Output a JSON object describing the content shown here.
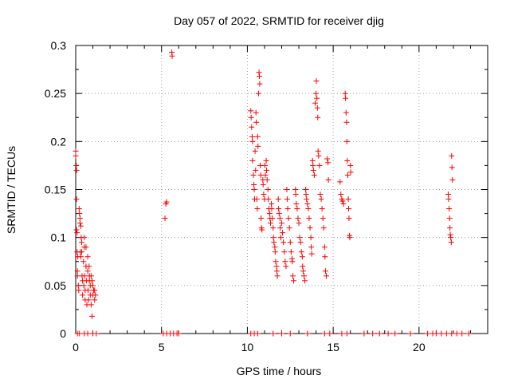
{
  "chart_data": {
    "type": "scatter",
    "title": "Day 057 of 2022, SRMTID for receiver djig",
    "xlabel": "GPS time / hours",
    "ylabel": "SRMTID / TECUs",
    "xlim": [
      0,
      24
    ],
    "ylim": [
      0,
      0.3
    ],
    "xticks": [
      "0",
      "5",
      "10",
      "15",
      "20"
    ],
    "xtick_values": [
      0,
      5,
      10,
      15,
      20
    ],
    "yticks": [
      "0",
      "0.05",
      "0.1",
      "0.15",
      "0.2",
      "0.25",
      "0.3"
    ],
    "ytick_values": [
      0,
      0.05,
      0.1,
      0.15,
      0.2,
      0.25,
      0.3
    ],
    "grid": true,
    "marker": "+",
    "color": "#ff0000",
    "series": [
      {
        "points": [
          [
            0.0,
            0.19
          ],
          [
            0.0,
            0.185
          ],
          [
            0.03,
            0.175
          ],
          [
            0.05,
            0.17
          ],
          [
            0.05,
            0.14
          ],
          [
            0.05,
            0.108
          ],
          [
            0.08,
            0.105
          ],
          [
            0.08,
            0.085
          ],
          [
            0.1,
            0.065
          ],
          [
            0.1,
            0.06
          ],
          [
            0.12,
            0.08
          ],
          [
            0.15,
            0.05
          ],
          [
            0.18,
            0.045
          ],
          [
            0.2,
            0.13
          ],
          [
            0.22,
            0.125
          ],
          [
            0.25,
            0.12
          ],
          [
            0.25,
            0.115
          ],
          [
            0.27,
            0.085
          ],
          [
            0.3,
            0.08
          ],
          [
            0.3,
            0.112
          ],
          [
            0.32,
            0.1
          ],
          [
            0.35,
            0.095
          ],
          [
            0.35,
            0.085
          ],
          [
            0.37,
            0.06
          ],
          [
            0.4,
            0.055
          ],
          [
            0.4,
            0.04
          ],
          [
            0.45,
            0.075
          ],
          [
            0.47,
            0.05
          ],
          [
            0.5,
            0.1
          ],
          [
            0.5,
            0.09
          ],
          [
            0.52,
            0.06
          ],
          [
            0.55,
            0.045
          ],
          [
            0.55,
            0.035
          ],
          [
            0.6,
            0.09
          ],
          [
            0.6,
            0.07
          ],
          [
            0.62,
            0.055
          ],
          [
            0.65,
            0.03
          ],
          [
            0.7,
            0.08
          ],
          [
            0.7,
            0.065
          ],
          [
            0.72,
            0.045
          ],
          [
            0.75,
            0.035
          ],
          [
            0.78,
            0.07
          ],
          [
            0.8,
            0.06
          ],
          [
            0.8,
            0.055
          ],
          [
            0.85,
            0.05
          ],
          [
            0.85,
            0.04
          ],
          [
            0.9,
            0.06
          ],
          [
            0.9,
            0.03
          ],
          [
            0.95,
            0.055
          ],
          [
            0.95,
            0.018
          ],
          [
            1.0,
            0.05
          ],
          [
            1.0,
            0.04
          ],
          [
            1.05,
            0.045
          ],
          [
            1.1,
            0.035
          ],
          [
            1.1,
            0.045
          ],
          [
            1.15,
            0.04
          ],
          [
            5.2,
            0.12
          ],
          [
            5.25,
            0.135
          ],
          [
            5.3,
            0.137
          ],
          [
            5.6,
            0.293
          ],
          [
            5.62,
            0.289
          ],
          [
            10.2,
            0.232
          ],
          [
            10.22,
            0.225
          ],
          [
            10.25,
            0.215
          ],
          [
            10.28,
            0.205
          ],
          [
            10.3,
            0.2
          ],
          [
            10.3,
            0.18
          ],
          [
            10.35,
            0.165
          ],
          [
            10.38,
            0.155
          ],
          [
            10.4,
            0.15
          ],
          [
            10.42,
            0.14
          ],
          [
            10.45,
            0.19
          ],
          [
            10.48,
            0.17
          ],
          [
            10.5,
            0.23
          ],
          [
            10.52,
            0.22
          ],
          [
            10.55,
            0.14
          ],
          [
            10.58,
            0.13
          ],
          [
            10.6,
            0.205
          ],
          [
            10.62,
            0.195
          ],
          [
            10.65,
            0.25
          ],
          [
            10.68,
            0.272
          ],
          [
            10.7,
            0.268
          ],
          [
            10.72,
            0.26
          ],
          [
            10.75,
            0.175
          ],
          [
            10.78,
            0.165
          ],
          [
            10.8,
            0.12
          ],
          [
            10.82,
            0.11
          ],
          [
            10.85,
            0.108
          ],
          [
            10.9,
            0.16
          ],
          [
            10.92,
            0.155
          ],
          [
            10.95,
            0.145
          ],
          [
            11.0,
            0.14
          ],
          [
            11.02,
            0.175
          ],
          [
            11.05,
            0.165
          ],
          [
            11.1,
            0.18
          ],
          [
            11.12,
            0.17
          ],
          [
            11.15,
            0.16
          ],
          [
            11.2,
            0.15
          ],
          [
            11.22,
            0.14
          ],
          [
            11.25,
            0.13
          ],
          [
            11.3,
            0.125
          ],
          [
            11.32,
            0.12
          ],
          [
            11.35,
            0.115
          ],
          [
            11.4,
            0.135
          ],
          [
            11.42,
            0.13
          ],
          [
            11.45,
            0.12
          ],
          [
            11.5,
            0.11
          ],
          [
            11.52,
            0.1
          ],
          [
            11.55,
            0.095
          ],
          [
            11.6,
            0.09
          ],
          [
            11.62,
            0.085
          ],
          [
            11.65,
            0.075
          ],
          [
            11.7,
            0.07
          ],
          [
            11.72,
            0.065
          ],
          [
            11.75,
            0.06
          ],
          [
            11.8,
            0.14
          ],
          [
            11.82,
            0.13
          ],
          [
            11.85,
            0.125
          ],
          [
            11.9,
            0.12
          ],
          [
            11.92,
            0.11
          ],
          [
            11.95,
            0.1
          ],
          [
            12.0,
            0.115
          ],
          [
            12.05,
            0.105
          ],
          [
            12.1,
            0.095
          ],
          [
            12.15,
            0.085
          ],
          [
            12.2,
            0.075
          ],
          [
            12.25,
            0.07
          ],
          [
            12.3,
            0.15
          ],
          [
            12.32,
            0.14
          ],
          [
            12.35,
            0.13
          ],
          [
            12.4,
            0.12
          ],
          [
            12.45,
            0.11
          ],
          [
            12.5,
            0.095
          ],
          [
            12.55,
            0.085
          ],
          [
            12.6,
            0.078
          ],
          [
            12.62,
            0.075
          ],
          [
            12.65,
            0.06
          ],
          [
            12.7,
            0.055
          ],
          [
            12.8,
            0.15
          ],
          [
            12.82,
            0.145
          ],
          [
            12.85,
            0.135
          ],
          [
            12.9,
            0.13
          ],
          [
            12.95,
            0.12
          ],
          [
            13.0,
            0.115
          ],
          [
            13.05,
            0.1
          ],
          [
            13.1,
            0.095
          ],
          [
            13.15,
            0.085
          ],
          [
            13.2,
            0.08
          ],
          [
            13.22,
            0.07
          ],
          [
            13.25,
            0.065
          ],
          [
            13.3,
            0.06
          ],
          [
            13.35,
            0.055
          ],
          [
            13.4,
            0.15
          ],
          [
            13.42,
            0.145
          ],
          [
            13.45,
            0.14
          ],
          [
            13.5,
            0.135
          ],
          [
            13.55,
            0.13
          ],
          [
            13.6,
            0.12
          ],
          [
            13.65,
            0.11
          ],
          [
            13.7,
            0.1
          ],
          [
            13.72,
            0.09
          ],
          [
            13.75,
            0.083
          ],
          [
            13.8,
            0.18
          ],
          [
            13.82,
            0.175
          ],
          [
            13.85,
            0.17
          ],
          [
            13.9,
            0.165
          ],
          [
            13.95,
            0.24
          ],
          [
            14.0,
            0.25
          ],
          [
            14.02,
            0.263
          ],
          [
            14.05,
            0.245
          ],
          [
            14.08,
            0.235
          ],
          [
            14.1,
            0.225
          ],
          [
            14.12,
            0.19
          ],
          [
            14.15,
            0.185
          ],
          [
            14.2,
            0.175
          ],
          [
            14.25,
            0.145
          ],
          [
            14.3,
            0.14
          ],
          [
            14.35,
            0.13
          ],
          [
            14.4,
            0.12
          ],
          [
            14.45,
            0.11
          ],
          [
            14.5,
            0.09
          ],
          [
            14.52,
            0.08
          ],
          [
            14.55,
            0.065
          ],
          [
            14.6,
            0.06
          ],
          [
            14.65,
            0.182
          ],
          [
            14.7,
            0.178
          ],
          [
            14.72,
            0.16
          ],
          [
            15.4,
            0.158
          ],
          [
            15.45,
            0.145
          ],
          [
            15.5,
            0.14
          ],
          [
            15.55,
            0.138
          ],
          [
            15.6,
            0.135
          ],
          [
            15.7,
            0.25
          ],
          [
            15.72,
            0.245
          ],
          [
            15.75,
            0.23
          ],
          [
            15.78,
            0.22
          ],
          [
            15.8,
            0.2
          ],
          [
            15.82,
            0.18
          ],
          [
            15.85,
            0.165
          ],
          [
            15.88,
            0.14
          ],
          [
            15.9,
            0.13
          ],
          [
            15.92,
            0.12
          ],
          [
            15.95,
            0.102
          ],
          [
            15.97,
            0.1
          ],
          [
            16.0,
            0.175
          ],
          [
            16.02,
            0.168
          ],
          [
            21.7,
            0.145
          ],
          [
            21.72,
            0.14
          ],
          [
            21.75,
            0.13
          ],
          [
            21.78,
            0.12
          ],
          [
            21.8,
            0.11
          ],
          [
            21.82,
            0.103
          ],
          [
            21.85,
            0.1
          ],
          [
            21.88,
            0.095
          ],
          [
            21.9,
            0.185
          ],
          [
            21.92,
            0.173
          ],
          [
            21.95,
            0.16
          ],
          [
            0.1,
            0.0
          ],
          [
            0.2,
            0.0
          ],
          [
            0.5,
            0.0
          ],
          [
            0.7,
            0.0
          ],
          [
            1.0,
            0.0
          ],
          [
            1.2,
            0.0
          ],
          [
            5.1,
            0.0
          ],
          [
            5.3,
            0.0
          ],
          [
            5.5,
            0.0
          ],
          [
            5.7,
            0.0
          ],
          [
            5.9,
            0.0
          ],
          [
            6.0,
            0.0
          ],
          [
            10.2,
            0.0
          ],
          [
            10.4,
            0.0
          ],
          [
            10.6,
            0.0
          ],
          [
            11.5,
            0.0
          ],
          [
            12.0,
            0.0
          ],
          [
            12.5,
            0.0
          ],
          [
            13.5,
            0.0
          ],
          [
            14.5,
            0.0
          ],
          [
            14.8,
            0.0
          ],
          [
            15.5,
            0.0
          ],
          [
            15.8,
            0.0
          ],
          [
            16.8,
            0.0
          ],
          [
            17.3,
            0.0
          ],
          [
            17.7,
            0.0
          ],
          [
            18.2,
            0.0
          ],
          [
            18.6,
            0.0
          ],
          [
            19.5,
            0.0
          ],
          [
            20.5,
            0.0
          ],
          [
            20.8,
            0.0
          ],
          [
            21.0,
            0.0
          ],
          [
            21.3,
            0.0
          ],
          [
            21.6,
            0.0
          ],
          [
            21.9,
            0.0
          ],
          [
            22.2,
            0.0
          ],
          [
            22.5,
            0.0
          ],
          [
            22.9,
            0.0
          ]
        ]
      }
    ]
  }
}
